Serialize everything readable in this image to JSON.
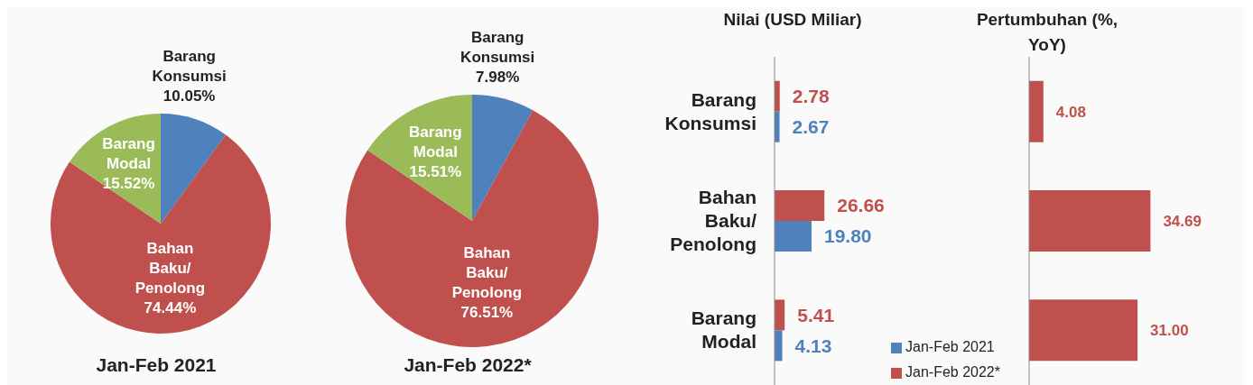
{
  "chart_data": [
    {
      "type": "pie",
      "title": "Jan-Feb 2021",
      "categories": [
        "Barang Konsumsi",
        "Bahan Baku/ Penolong",
        "Barang Modal"
      ],
      "values": [
        10.05,
        74.44,
        15.52
      ],
      "colors": [
        "#4f81bd",
        "#c0504d",
        "#9bbb59"
      ],
      "value_labels": [
        "10.05%",
        "74.44%",
        "15.52%"
      ],
      "legend": false
    },
    {
      "type": "pie",
      "title": "Jan-Feb 2022*",
      "categories": [
        "Barang Konsumsi",
        "Bahan Baku/ Penolong",
        "Barang Modal"
      ],
      "values": [
        7.98,
        76.51,
        15.51
      ],
      "colors": [
        "#4f81bd",
        "#c0504d",
        "#9bbb59"
      ],
      "value_labels": [
        "7.98%",
        "76.51%",
        "15.51%"
      ],
      "legend": false
    },
    {
      "type": "bar",
      "orientation": "horizontal",
      "title": "Nilai (USD Miliar)",
      "categories": [
        "Barang Konsumsi",
        "Bahan Baku/ Penolong",
        "Barang Modal"
      ],
      "tick_labels": "y",
      "legend": "bottom right",
      "series": [
        {
          "name": "Jan-Feb 2022*",
          "color": "#c0504d",
          "values": [
            2.78,
            26.66,
            5.41
          ],
          "value_labels": [
            "2.78",
            "26.66",
            "5.41"
          ]
        },
        {
          "name": "Jan-Feb 2021",
          "color": "#4f81bd",
          "values": [
            2.67,
            19.8,
            4.13
          ],
          "value_labels": [
            "2.67",
            "19.80",
            "4.13"
          ]
        }
      ]
    },
    {
      "type": "bar",
      "orientation": "horizontal",
      "title": "Pertumbuhan (%, YoY)",
      "categories": [
        "Barang Konsumsi",
        "Bahan Baku/ Penolong",
        "Barang Modal"
      ],
      "tick_labels": false,
      "legend": false,
      "series": [
        {
          "color": "#c0504d",
          "values": [
            4.08,
            34.69,
            31.0
          ],
          "value_labels": [
            "4.08",
            "34.69",
            "31.00"
          ]
        }
      ]
    }
  ]
}
